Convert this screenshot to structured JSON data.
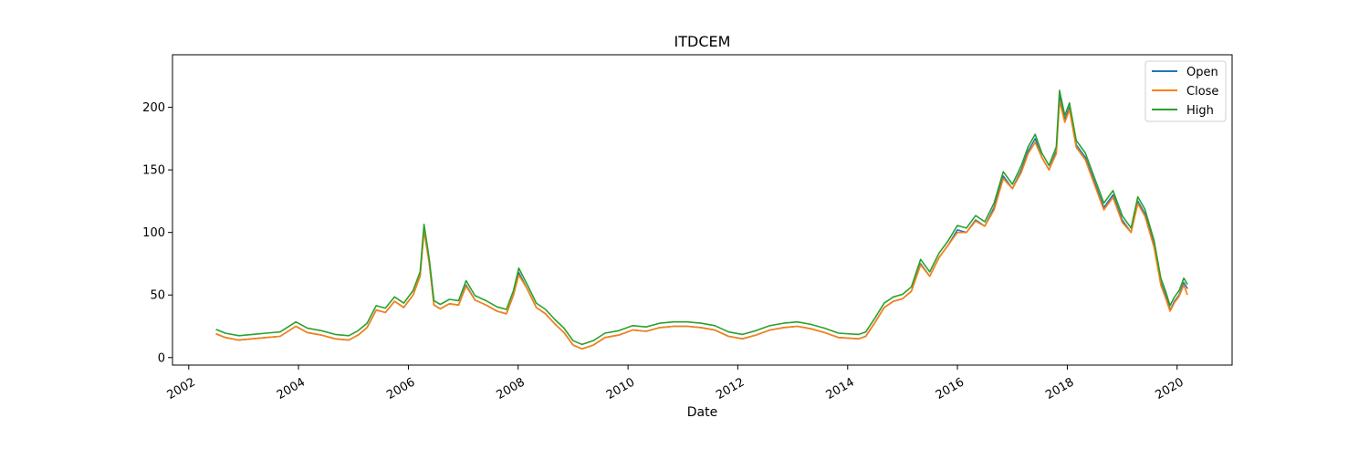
{
  "chart_data": {
    "type": "line",
    "title": "ITDCEM",
    "xlabel": "Date",
    "ylabel": "",
    "xlim": [
      "2001-09-15",
      "2021-01-01"
    ],
    "ylim": [
      -6,
      242
    ],
    "x_ticks": [
      "2002",
      "2004",
      "2006",
      "2008",
      "2010",
      "2012",
      "2014",
      "2016",
      "2018",
      "2020"
    ],
    "y_ticks": [
      0,
      50,
      100,
      150,
      200
    ],
    "grid": false,
    "legend_position": "top-right",
    "colors": {
      "Open": "#1f77b4",
      "Close": "#ff7f0e",
      "High": "#2ca02c"
    },
    "high_offset": 3.5,
    "series_names": [
      "Open",
      "Close",
      "High"
    ],
    "x": [
      "2002-07-01",
      "2002-09-01",
      "2002-12-01",
      "2003-03-01",
      "2003-06-01",
      "2003-09-01",
      "2003-12-15",
      "2004-03-01",
      "2004-06-01",
      "2004-09-01",
      "2004-12-01",
      "2005-02-01",
      "2005-04-01",
      "2005-06-01",
      "2005-08-01",
      "2005-10-01",
      "2005-12-01",
      "2006-02-01",
      "2006-03-20",
      "2006-04-15",
      "2006-05-20",
      "2006-06-20",
      "2006-08-01",
      "2006-10-01",
      "2006-12-01",
      "2007-01-20",
      "2007-03-20",
      "2007-06-01",
      "2007-08-15",
      "2007-10-15",
      "2007-12-01",
      "2008-01-05",
      "2008-03-01",
      "2008-05-01",
      "2008-07-01",
      "2008-09-01",
      "2008-11-01",
      "2009-01-01",
      "2009-03-01",
      "2009-05-15",
      "2009-08-01",
      "2009-11-01",
      "2010-02-01",
      "2010-05-01",
      "2010-08-01",
      "2010-11-01",
      "2011-02-01",
      "2011-05-01",
      "2011-08-01",
      "2011-11-01",
      "2012-02-01",
      "2012-05-01",
      "2012-08-01",
      "2012-11-01",
      "2013-02-01",
      "2013-05-01",
      "2013-08-01",
      "2013-11-01",
      "2014-03-15",
      "2014-05-01",
      "2014-07-01",
      "2014-09-01",
      "2014-11-01",
      "2015-01-01",
      "2015-03-01",
      "2015-05-01",
      "2015-07-01",
      "2015-09-01",
      "2015-11-01",
      "2016-01-01",
      "2016-03-01",
      "2016-05-01",
      "2016-07-01",
      "2016-09-01",
      "2016-11-01",
      "2017-01-01",
      "2017-03-01",
      "2017-04-15",
      "2017-06-01",
      "2017-07-15",
      "2017-09-01",
      "2017-10-20",
      "2017-11-10",
      "2017-12-15",
      "2018-01-15",
      "2018-03-01",
      "2018-05-01",
      "2018-07-01",
      "2018-09-01",
      "2018-11-01",
      "2019-01-01",
      "2019-03-01",
      "2019-04-15",
      "2019-06-01",
      "2019-08-01",
      "2019-09-15",
      "2019-10-15",
      "2019-11-15",
      "2019-12-15",
      "2020-01-15",
      "2020-02-15",
      "2020-03-10"
    ],
    "series": [
      {
        "name": "Open",
        "values": [
          19,
          16,
          14,
          15,
          16,
          17,
          25,
          20,
          18,
          15,
          14,
          18,
          24,
          38,
          36,
          45,
          40,
          50,
          65,
          103,
          75,
          42,
          39,
          43,
          42,
          58,
          46,
          42,
          37,
          35,
          50,
          68,
          55,
          40,
          35,
          27,
          20,
          10,
          7,
          10,
          16,
          18,
          22,
          21,
          24,
          25,
          25,
          24,
          22,
          17,
          15,
          18,
          22,
          24,
          25,
          23,
          20,
          16,
          15,
          17,
          28,
          40,
          45,
          47,
          53,
          75,
          65,
          80,
          90,
          102,
          100,
          110,
          105,
          120,
          145,
          135,
          150,
          165,
          175,
          160,
          150,
          165,
          210,
          190,
          200,
          170,
          160,
          140,
          120,
          130,
          110,
          100,
          125,
          115,
          90,
          60,
          50,
          38,
          45,
          50,
          60,
          55
        ]
      },
      {
        "name": "Close",
        "values": [
          19,
          16,
          14,
          15,
          16,
          17,
          25,
          20,
          18,
          15,
          14,
          18,
          24,
          38,
          36,
          45,
          40,
          50,
          65,
          101,
          75,
          42,
          39,
          43,
          42,
          57,
          46,
          42,
          37,
          35,
          50,
          66,
          55,
          40,
          35,
          27,
          20,
          10,
          7,
          10,
          16,
          18,
          22,
          21,
          24,
          25,
          25,
          24,
          22,
          17,
          15,
          18,
          22,
          24,
          25,
          23,
          20,
          16,
          15,
          17,
          28,
          40,
          45,
          47,
          53,
          74,
          65,
          80,
          90,
          100,
          100,
          109,
          105,
          118,
          143,
          135,
          148,
          163,
          172,
          160,
          150,
          163,
          205,
          188,
          198,
          168,
          158,
          138,
          118,
          128,
          108,
          100,
          123,
          113,
          88,
          58,
          48,
          37,
          44,
          49,
          58,
          50
        ]
      }
    ]
  }
}
